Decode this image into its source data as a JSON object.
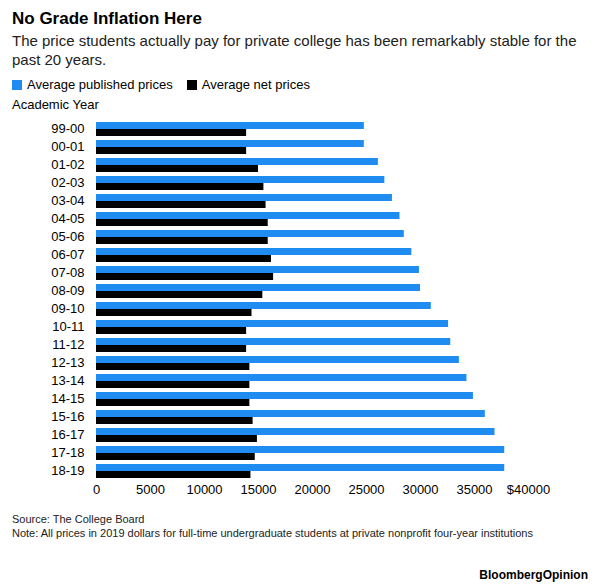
{
  "chart_data": {
    "type": "bar",
    "orientation": "horizontal",
    "title": "No Grade Inflation Here",
    "subtitle": "The price students actually pay for private college has been remarkably stable for the past 20 years.",
    "ylabel": "Academic Year",
    "categories": [
      "99-00",
      "00-01",
      "01-02",
      "02-03",
      "03-04",
      "04-05",
      "05-06",
      "06-07",
      "07-08",
      "08-09",
      "09-10",
      "10-11",
      "11-12",
      "12-13",
      "13-14",
      "14-15",
      "15-16",
      "16-17",
      "17-18",
      "18-19"
    ],
    "series": [
      {
        "name": "Average published prices",
        "color": "#1e8cf0",
        "values": [
          24800,
          24800,
          26100,
          26700,
          27400,
          28100,
          28500,
          29200,
          29900,
          30000,
          31000,
          32600,
          32800,
          33600,
          34300,
          34900,
          36000,
          36900,
          37800,
          37800
        ]
      },
      {
        "name": "Average net prices",
        "color": "#000000",
        "values": [
          13900,
          13900,
          15000,
          15500,
          15700,
          15900,
          15900,
          16200,
          16400,
          15400,
          14400,
          13900,
          13900,
          14200,
          14200,
          14200,
          14500,
          14900,
          14700,
          14300
        ]
      }
    ],
    "xlim": [
      0,
      40000
    ],
    "xticks": [
      0,
      5000,
      10000,
      15000,
      20000,
      25000,
      30000,
      35000,
      {
        "value": 40000,
        "label": "$40000"
      }
    ],
    "grid": false,
    "legend": "top",
    "source": "Source: The College Board",
    "note": "Note: All prices in 2019 dollars for full-time undergraduate students at private nonprofit four-year institutions",
    "credit": "BloombergOpinion"
  }
}
